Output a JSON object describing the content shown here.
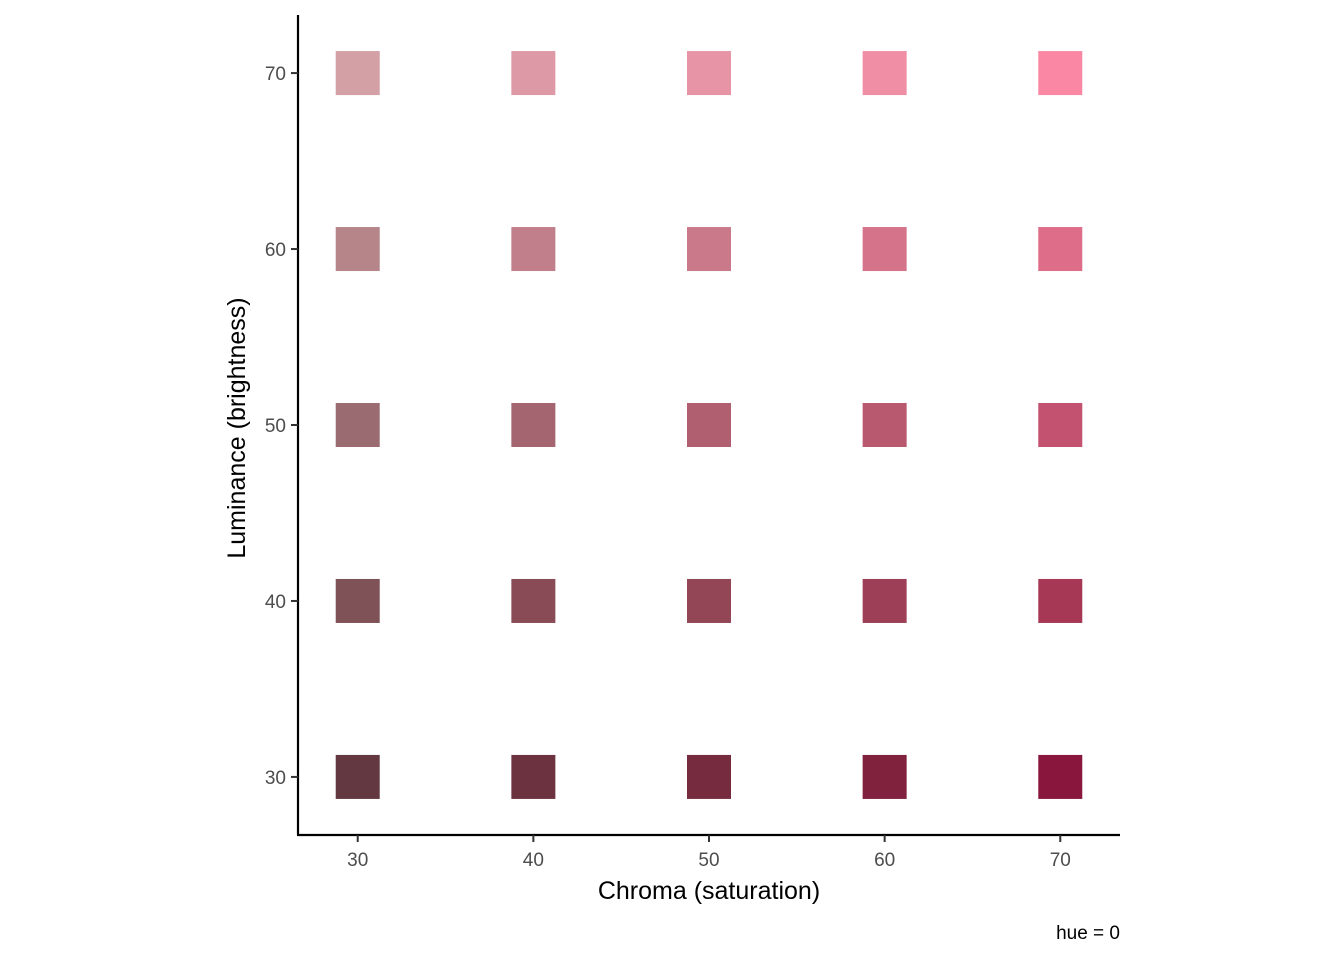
{
  "chart_data": {
    "type": "heatmap",
    "xlabel": "Chroma (saturation)",
    "ylabel": "Luminance (brightness)",
    "caption": "hue = 0",
    "x_ticks": [
      30,
      40,
      50,
      60,
      70
    ],
    "y_ticks": [
      30,
      40,
      50,
      60,
      70
    ],
    "xlim": [
      26.6,
      73.4
    ],
    "ylim": [
      26.7,
      73.3
    ],
    "grid": false,
    "legend": "none",
    "points": [
      {
        "chroma": 30,
        "luminance": 30,
        "color": "#633840"
      },
      {
        "chroma": 40,
        "luminance": 30,
        "color": "#6D323F"
      },
      {
        "chroma": 50,
        "luminance": 30,
        "color": "#762B3E"
      },
      {
        "chroma": 60,
        "luminance": 30,
        "color": "#80223E"
      },
      {
        "chroma": 70,
        "luminance": 30,
        "color": "#89173D"
      },
      {
        "chroma": 30,
        "luminance": 40,
        "color": "#7E5257"
      },
      {
        "chroma": 40,
        "luminance": 40,
        "color": "#894C57"
      },
      {
        "chroma": 50,
        "luminance": 40,
        "color": "#934656"
      },
      {
        "chroma": 60,
        "luminance": 40,
        "color": "#9D3F56"
      },
      {
        "chroma": 70,
        "luminance": 40,
        "color": "#A63856"
      },
      {
        "chroma": 30,
        "luminance": 50,
        "color": "#9A6B70"
      },
      {
        "chroma": 40,
        "luminance": 50,
        "color": "#A46570"
      },
      {
        "chroma": 50,
        "luminance": 50,
        "color": "#AF5F70"
      },
      {
        "chroma": 60,
        "luminance": 50,
        "color": "#B9596F"
      },
      {
        "chroma": 70,
        "luminance": 50,
        "color": "#C2526F"
      },
      {
        "chroma": 30,
        "luminance": 60,
        "color": "#B6858A"
      },
      {
        "chroma": 40,
        "luminance": 60,
        "color": "#C07F8A"
      },
      {
        "chroma": 50,
        "luminance": 60,
        "color": "#CA798A"
      },
      {
        "chroma": 60,
        "luminance": 60,
        "color": "#D4738A"
      },
      {
        "chroma": 70,
        "luminance": 60,
        "color": "#DE6D89"
      },
      {
        "chroma": 30,
        "luminance": 70,
        "color": "#D3A0A6"
      },
      {
        "chroma": 40,
        "luminance": 70,
        "color": "#DD9AA6"
      },
      {
        "chroma": 50,
        "luminance": 70,
        "color": "#E794A6"
      },
      {
        "chroma": 60,
        "luminance": 70,
        "color": "#F08EA5"
      },
      {
        "chroma": 70,
        "luminance": 70,
        "color": "#FA88A5"
      }
    ]
  }
}
